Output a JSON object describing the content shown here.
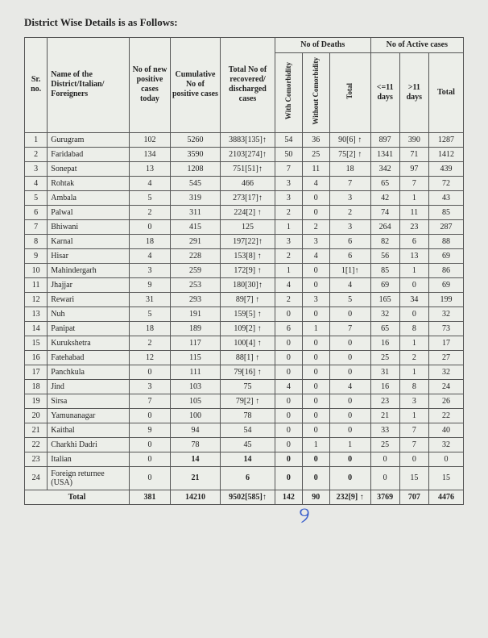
{
  "title": "District Wise Details is as Follows:",
  "headers": {
    "sr": "Sr. no.",
    "name": "Name of the District/Italian/ Foreigners",
    "new": "No of new positive cases today",
    "cum": "Cumulative No of positive cases",
    "rec": "Total No of recovered/ discharged cases",
    "deaths_group": "No of Deaths",
    "active_group": "No of Active cases",
    "with_c": "With Comorbidity",
    "without_c": "Without Comorbidity",
    "deaths_total": "Total",
    "le11": "<=11 days",
    "gt11": ">11 days",
    "active_total": "Total"
  },
  "rows": [
    {
      "sr": "1",
      "name": "Gurugram",
      "new": "102",
      "cum": "5260",
      "rec": "3883[135]↑",
      "wc": "54",
      "woc": "36",
      "dt": "90[6] ↑",
      "a1": "897",
      "a2": "390",
      "at": "1287"
    },
    {
      "sr": "2",
      "name": "Faridabad",
      "new": "134",
      "cum": "3590",
      "rec": "2103[274]↑",
      "wc": "50",
      "woc": "25",
      "dt": "75[2] ↑",
      "a1": "1341",
      "a2": "71",
      "at": "1412"
    },
    {
      "sr": "3",
      "name": "Sonepat",
      "new": "13",
      "cum": "1208",
      "rec": "751[51]↑",
      "wc": "7",
      "woc": "11",
      "dt": "18",
      "a1": "342",
      "a2": "97",
      "at": "439"
    },
    {
      "sr": "4",
      "name": "Rohtak",
      "new": "4",
      "cum": "545",
      "rec": "466",
      "wc": "3",
      "woc": "4",
      "dt": "7",
      "a1": "65",
      "a2": "7",
      "at": "72"
    },
    {
      "sr": "5",
      "name": "Ambala",
      "new": "5",
      "cum": "319",
      "rec": "273[17]↑",
      "wc": "3",
      "woc": "0",
      "dt": "3",
      "a1": "42",
      "a2": "1",
      "at": "43"
    },
    {
      "sr": "6",
      "name": "Palwal",
      "new": "2",
      "cum": "311",
      "rec": "224[2] ↑",
      "wc": "2",
      "woc": "0",
      "dt": "2",
      "a1": "74",
      "a2": "11",
      "at": "85"
    },
    {
      "sr": "7",
      "name": "Bhiwani",
      "new": "0",
      "cum": "415",
      "rec": "125",
      "wc": "1",
      "woc": "2",
      "dt": "3",
      "a1": "264",
      "a2": "23",
      "at": "287"
    },
    {
      "sr": "8",
      "name": "Karnal",
      "new": "18",
      "cum": "291",
      "rec": "197[22]↑",
      "wc": "3",
      "woc": "3",
      "dt": "6",
      "a1": "82",
      "a2": "6",
      "at": "88"
    },
    {
      "sr": "9",
      "name": "Hisar",
      "new": "4",
      "cum": "228",
      "rec": "153[8] ↑",
      "wc": "2",
      "woc": "4",
      "dt": "6",
      "a1": "56",
      "a2": "13",
      "at": "69"
    },
    {
      "sr": "10",
      "name": "Mahindergarh",
      "new": "3",
      "cum": "259",
      "rec": "172[9] ↑",
      "wc": "1",
      "woc": "0",
      "dt": "1[1]↑",
      "a1": "85",
      "a2": "1",
      "at": "86"
    },
    {
      "sr": "11",
      "name": "Jhajjar",
      "new": "9",
      "cum": "253",
      "rec": "180[30]↑",
      "wc": "4",
      "woc": "0",
      "dt": "4",
      "a1": "69",
      "a2": "0",
      "at": "69"
    },
    {
      "sr": "12",
      "name": "Rewari",
      "new": "31",
      "cum": "293",
      "rec": "89[7] ↑",
      "wc": "2",
      "woc": "3",
      "dt": "5",
      "a1": "165",
      "a2": "34",
      "at": "199"
    },
    {
      "sr": "13",
      "name": "Nuh",
      "new": "5",
      "cum": "191",
      "rec": "159[5] ↑",
      "wc": "0",
      "woc": "0",
      "dt": "0",
      "a1": "32",
      "a2": "0",
      "at": "32"
    },
    {
      "sr": "14",
      "name": "Panipat",
      "new": "18",
      "cum": "189",
      "rec": "109[2] ↑",
      "wc": "6",
      "woc": "1",
      "dt": "7",
      "a1": "65",
      "a2": "8",
      "at": "73"
    },
    {
      "sr": "15",
      "name": "Kurukshetra",
      "new": "2",
      "cum": "117",
      "rec": "100[4] ↑",
      "wc": "0",
      "woc": "0",
      "dt": "0",
      "a1": "16",
      "a2": "1",
      "at": "17"
    },
    {
      "sr": "16",
      "name": "Fatehabad",
      "new": "12",
      "cum": "115",
      "rec": "88[1] ↑",
      "wc": "0",
      "woc": "0",
      "dt": "0",
      "a1": "25",
      "a2": "2",
      "at": "27"
    },
    {
      "sr": "17",
      "name": "Panchkula",
      "new": "0",
      "cum": "111",
      "rec": "79[16] ↑",
      "wc": "0",
      "woc": "0",
      "dt": "0",
      "a1": "31",
      "a2": "1",
      "at": "32"
    },
    {
      "sr": "18",
      "name": "Jind",
      "new": "3",
      "cum": "103",
      "rec": "75",
      "wc": "4",
      "woc": "0",
      "dt": "4",
      "a1": "16",
      "a2": "8",
      "at": "24"
    },
    {
      "sr": "19",
      "name": "Sirsa",
      "new": "7",
      "cum": "105",
      "rec": "79[2] ↑",
      "wc": "0",
      "woc": "0",
      "dt": "0",
      "a1": "23",
      "a2": "3",
      "at": "26"
    },
    {
      "sr": "20",
      "name": "Yamunanagar",
      "new": "0",
      "cum": "100",
      "rec": "78",
      "wc": "0",
      "woc": "0",
      "dt": "0",
      "a1": "21",
      "a2": "1",
      "at": "22"
    },
    {
      "sr": "21",
      "name": "Kaithal",
      "new": "9",
      "cum": "94",
      "rec": "54",
      "wc": "0",
      "woc": "0",
      "dt": "0",
      "a1": "33",
      "a2": "7",
      "at": "40"
    },
    {
      "sr": "22",
      "name": "Charkhi Dadri",
      "new": "0",
      "cum": "78",
      "rec": "45",
      "wc": "0",
      "woc": "1",
      "dt": "1",
      "a1": "25",
      "a2": "7",
      "at": "32"
    },
    {
      "sr": "23",
      "name": "Italian",
      "new": "0",
      "cum": "14",
      "rec": "14",
      "wc": "0",
      "woc": "0",
      "dt": "0",
      "a1": "0",
      "a2": "0",
      "at": "0",
      "bold": true
    },
    {
      "sr": "24",
      "name": "Foreign returnee (USA)",
      "new": "0",
      "cum": "21",
      "rec": "6",
      "wc": "0",
      "woc": "0",
      "dt": "0",
      "a1": "0",
      "a2": "15",
      "at": "15",
      "bold": true
    }
  ],
  "total": {
    "label": "Total",
    "new": "381",
    "cum": "14210",
    "rec": "9502[585]↑",
    "wc": "142",
    "woc": "90",
    "dt": "232[9] ↑",
    "a1": "3769",
    "a2": "707",
    "at": "4476"
  },
  "colwidths": [
    "25px",
    "90px",
    "45px",
    "55px",
    "60px",
    "30px",
    "30px",
    "45px",
    "32px",
    "32px",
    "38px"
  ]
}
